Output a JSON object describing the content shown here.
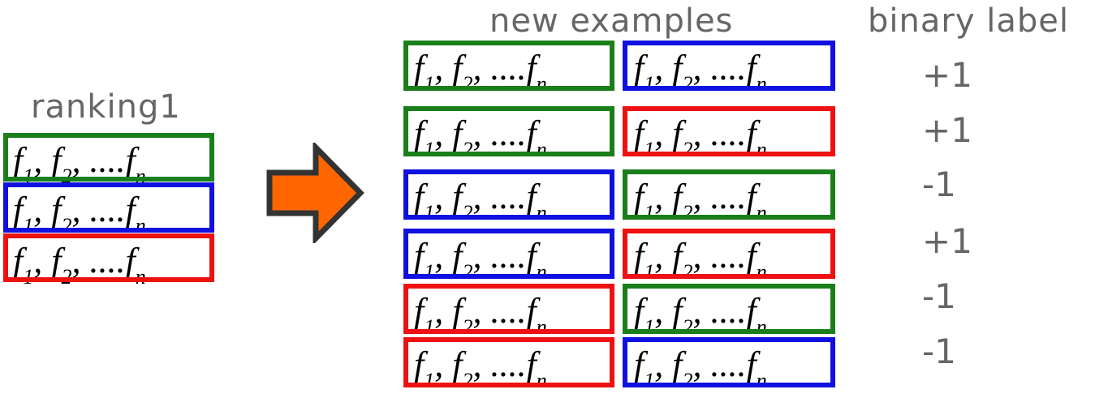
{
  "headings": {
    "ranking": "ranking1",
    "new_examples": "new examples",
    "binary_label": "binary label"
  },
  "feature_parts": [
    "f",
    "1",
    ", ",
    "f",
    "2",
    ", ....",
    "f",
    "n"
  ],
  "colors": {
    "green": "#1a7f1a",
    "blue": "#1010e0",
    "red": "#ee1111",
    "arrow_fill": "#ff6600",
    "arrow_stroke": "#333333",
    "heading_text": "#666666"
  },
  "ranking1": [
    {
      "color": "green"
    },
    {
      "color": "blue"
    },
    {
      "color": "red"
    }
  ],
  "new_examples": [
    {
      "left": "green",
      "right": "blue",
      "label": "+1"
    },
    {
      "left": "green",
      "right": "red",
      "label": "+1"
    },
    {
      "left": "blue",
      "right": "green",
      "label": "-1"
    },
    {
      "left": "blue",
      "right": "red",
      "label": "+1"
    },
    {
      "left": "red",
      "right": "green",
      "label": "-1"
    },
    {
      "left": "red",
      "right": "blue",
      "label": "-1"
    }
  ]
}
